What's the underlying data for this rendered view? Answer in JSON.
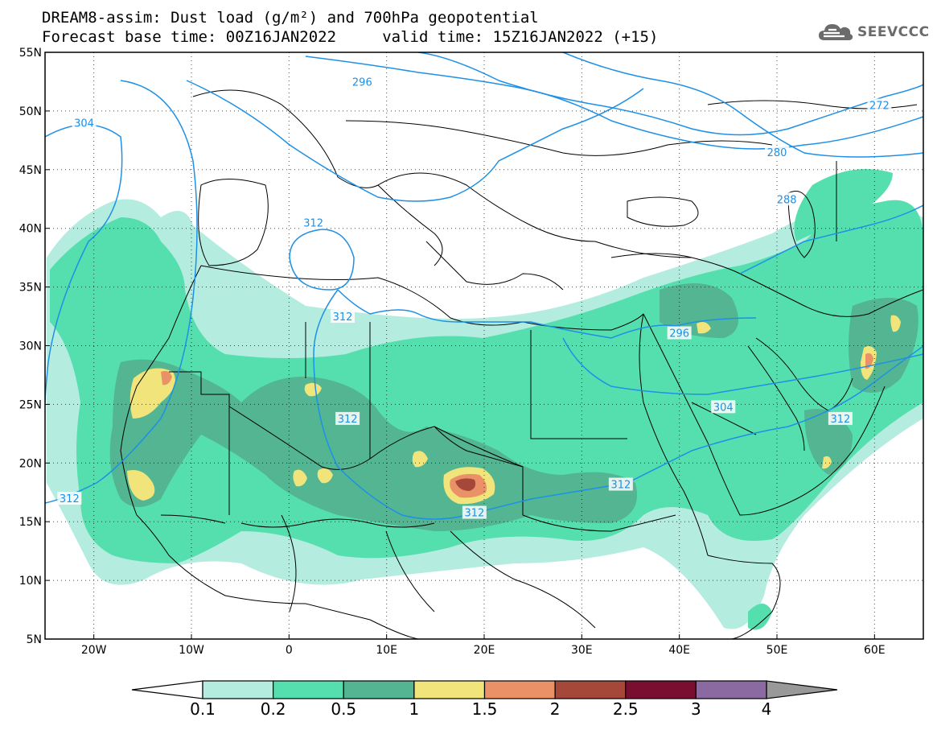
{
  "title": {
    "line1": "DREAM8-assim: Dust load (g/m²) and 700hPa geopotential",
    "line2": "Forecast base time: 00Z16JAN2022     valid time: 15Z16JAN2022 (+15)"
  },
  "logo": {
    "text": "SEEVCCC",
    "icon": "cloud-icon"
  },
  "map": {
    "lon_range": [
      -25,
      65
    ],
    "lat_range": [
      5,
      55
    ],
    "lon_ticks": [
      {
        "lon": -20,
        "label": "20W"
      },
      {
        "lon": -10,
        "label": "10W"
      },
      {
        "lon": 0,
        "label": "0"
      },
      {
        "lon": 10,
        "label": "10E"
      },
      {
        "lon": 20,
        "label": "20E"
      },
      {
        "lon": 30,
        "label": "30E"
      },
      {
        "lon": 40,
        "label": "40E"
      },
      {
        "lon": 50,
        "label": "50E"
      },
      {
        "lon": 60,
        "label": "60E"
      }
    ],
    "lat_ticks": [
      {
        "lat": 55,
        "label": "55N"
      },
      {
        "lat": 50,
        "label": "50N"
      },
      {
        "lat": 45,
        "label": "45N"
      },
      {
        "lat": 40,
        "label": "40N"
      },
      {
        "lat": 35,
        "label": "35N"
      },
      {
        "lat": 30,
        "label": "30N"
      },
      {
        "lat": 25,
        "label": "25N"
      },
      {
        "lat": 20,
        "label": "20N"
      },
      {
        "lat": 15,
        "label": "15N"
      },
      {
        "lat": 10,
        "label": "10N"
      },
      {
        "lat": 5,
        "label": "5N"
      }
    ],
    "grid": "dotted",
    "contour_color": "#1e90e6",
    "contour_labels": [
      {
        "text": "296",
        "lon": 7.5,
        "lat": 52.5
      },
      {
        "text": "304",
        "lon": -21,
        "lat": 49
      },
      {
        "text": "272",
        "lon": 60.5,
        "lat": 50.5
      },
      {
        "text": "280",
        "lon": 50,
        "lat": 46.5
      },
      {
        "text": "288",
        "lon": 51,
        "lat": 42.5
      },
      {
        "text": "312",
        "lon": 2.5,
        "lat": 40.5
      },
      {
        "text": "312",
        "lon": 5.5,
        "lat": 32.5
      },
      {
        "text": "312",
        "lon": 6,
        "lat": 23.8
      },
      {
        "text": "312",
        "lon": -22.5,
        "lat": 17
      },
      {
        "text": "312",
        "lon": 19,
        "lat": 15.8
      },
      {
        "text": "312",
        "lon": 34,
        "lat": 18.2
      },
      {
        "text": "312",
        "lon": 56.5,
        "lat": 23.8
      },
      {
        "text": "296",
        "lon": 40,
        "lat": 31.1
      },
      {
        "text": "304",
        "lon": 44.5,
        "lat": 24.8
      }
    ]
  },
  "colorbar": {
    "labels": [
      "0.1",
      "0.2",
      "0.5",
      "1",
      "1.5",
      "2",
      "2.5",
      "3",
      "4"
    ],
    "colors": [
      "#b4ece0",
      "#56dfae",
      "#53b591",
      "#f0e47a",
      "#eb9168",
      "#a5483a",
      "#7a0e31",
      "#8a6aa0"
    ],
    "under_color": "#ffffff",
    "over_color": "#999999"
  }
}
